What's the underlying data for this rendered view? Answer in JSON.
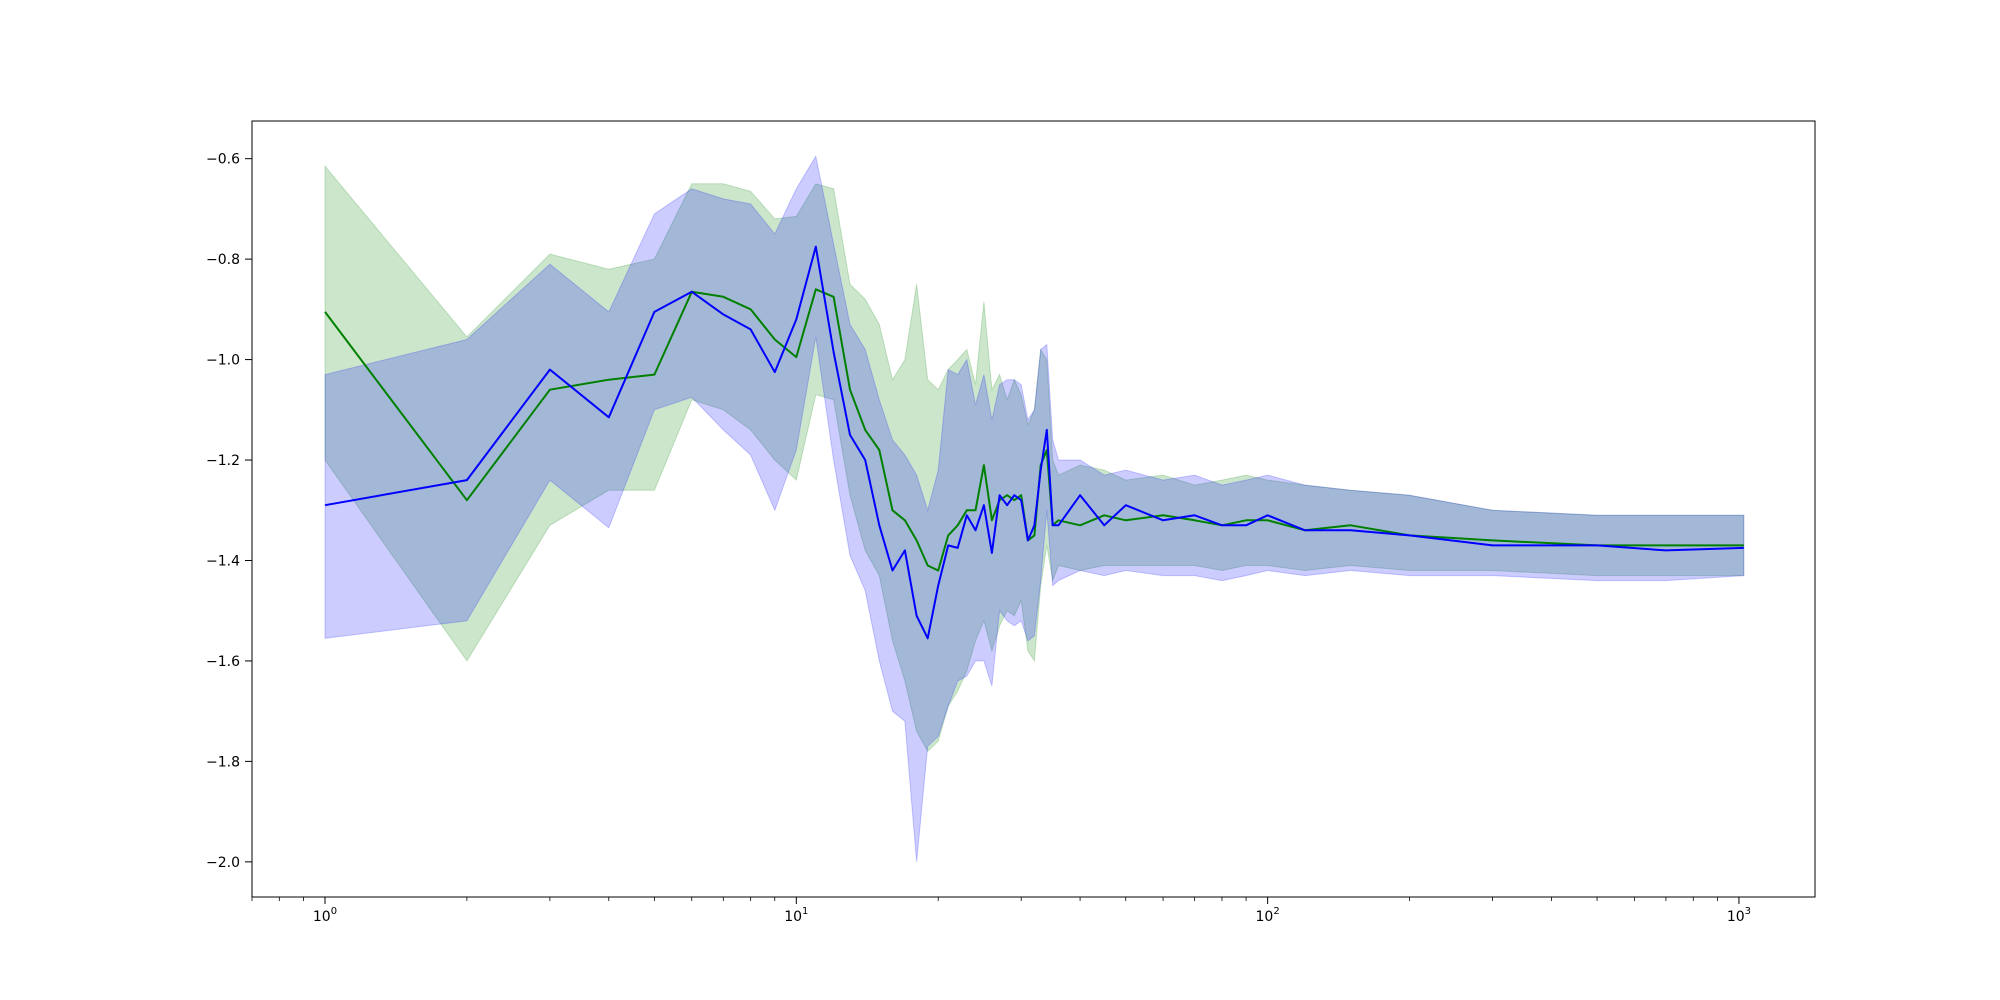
{
  "chart_data": {
    "type": "line",
    "title": "",
    "xlabel": "",
    "ylabel": "",
    "x_scale": "log",
    "xlim": [
      0.7,
      1450
    ],
    "ylim": [
      -2.07,
      -0.525
    ],
    "x_ticks": [
      {
        "value": 1,
        "base": "10",
        "exp": "0"
      },
      {
        "value": 10,
        "base": "10",
        "exp": "1"
      },
      {
        "value": 100,
        "base": "10",
        "exp": "2"
      },
      {
        "value": 1000,
        "base": "10",
        "exp": "3"
      }
    ],
    "y_ticks": [
      {
        "value": -0.6,
        "label": "−0.6"
      },
      {
        "value": -0.8,
        "label": "−0.8"
      },
      {
        "value": -1.0,
        "label": "−1.0"
      },
      {
        "value": -1.2,
        "label": "−1.2"
      },
      {
        "value": -1.4,
        "label": "−1.4"
      },
      {
        "value": -1.6,
        "label": "−1.6"
      },
      {
        "value": -1.8,
        "label": "−1.8"
      },
      {
        "value": -2.0,
        "label": "−2.0"
      }
    ],
    "grid": false,
    "legend": "none",
    "series": [
      {
        "color": "#008000",
        "band_color": "#008000",
        "band_opacity": 0.2,
        "x": [
          1,
          2,
          3,
          4,
          5,
          6,
          7,
          8,
          9,
          10,
          11,
          12,
          13,
          14,
          15,
          16,
          17,
          18,
          19,
          20,
          21,
          22,
          23,
          24,
          25,
          26,
          27,
          28,
          29,
          30,
          31,
          32,
          33,
          34,
          35,
          36,
          40,
          45,
          50,
          60,
          70,
          80,
          90,
          100,
          120,
          150,
          200,
          300,
          500,
          700,
          1024
        ],
        "y": [
          -0.905,
          -1.28,
          -1.06,
          -1.04,
          -1.03,
          -0.865,
          -0.875,
          -0.9,
          -0.96,
          -0.995,
          -0.86,
          -0.875,
          -1.06,
          -1.14,
          -1.18,
          -1.3,
          -1.32,
          -1.36,
          -1.41,
          -1.42,
          -1.35,
          -1.33,
          -1.3,
          -1.3,
          -1.21,
          -1.32,
          -1.28,
          -1.27,
          -1.28,
          -1.27,
          -1.36,
          -1.35,
          -1.21,
          -1.18,
          -1.33,
          -1.32,
          -1.33,
          -1.31,
          -1.32,
          -1.31,
          -1.32,
          -1.33,
          -1.32,
          -1.32,
          -1.34,
          -1.33,
          -1.35,
          -1.36,
          -1.37,
          -1.37,
          -1.37
        ],
        "upper": [
          -0.615,
          -0.955,
          -0.79,
          -0.82,
          -0.8,
          -0.65,
          -0.65,
          -0.665,
          -0.72,
          -0.715,
          -0.65,
          -0.66,
          -0.85,
          -0.88,
          -0.93,
          -1.04,
          -1.0,
          -0.85,
          -1.04,
          -1.06,
          -1.02,
          -1.0,
          -0.98,
          -1.05,
          -0.885,
          -1.06,
          -1.03,
          -1.08,
          -1.04,
          -1.07,
          -1.13,
          -1.1,
          -0.98,
          -1.0,
          -1.2,
          -1.23,
          -1.21,
          -1.22,
          -1.24,
          -1.23,
          -1.25,
          -1.24,
          -1.23,
          -1.24,
          -1.25,
          -1.26,
          -1.27,
          -1.3,
          -1.31,
          -1.31,
          -1.31
        ],
        "lower": [
          -1.2,
          -1.6,
          -1.33,
          -1.26,
          -1.26,
          -1.08,
          -1.1,
          -1.14,
          -1.2,
          -1.24,
          -1.07,
          -1.08,
          -1.27,
          -1.38,
          -1.43,
          -1.56,
          -1.64,
          -1.74,
          -1.78,
          -1.76,
          -1.69,
          -1.66,
          -1.62,
          -1.56,
          -1.52,
          -1.58,
          -1.53,
          -1.5,
          -1.51,
          -1.48,
          -1.58,
          -1.6,
          -1.45,
          -1.37,
          -1.44,
          -1.41,
          -1.42,
          -1.41,
          -1.41,
          -1.41,
          -1.41,
          -1.42,
          -1.41,
          -1.41,
          -1.42,
          -1.41,
          -1.42,
          -1.42,
          -1.43,
          -1.43,
          -1.43
        ]
      },
      {
        "color": "#0000ff",
        "band_color": "#0000ff",
        "band_opacity": 0.2,
        "x": [
          1,
          2,
          3,
          4,
          5,
          6,
          7,
          8,
          9,
          10,
          11,
          12,
          13,
          14,
          15,
          16,
          17,
          18,
          19,
          20,
          21,
          22,
          23,
          24,
          25,
          26,
          27,
          28,
          29,
          30,
          31,
          32,
          33,
          34,
          35,
          36,
          40,
          45,
          50,
          60,
          70,
          80,
          90,
          100,
          120,
          150,
          200,
          300,
          500,
          700,
          1024
        ],
        "y": [
          -1.29,
          -1.24,
          -1.02,
          -1.115,
          -0.905,
          -0.865,
          -0.91,
          -0.94,
          -1.025,
          -0.92,
          -0.775,
          -0.985,
          -1.15,
          -1.2,
          -1.33,
          -1.42,
          -1.38,
          -1.51,
          -1.555,
          -1.45,
          -1.37,
          -1.375,
          -1.31,
          -1.34,
          -1.29,
          -1.385,
          -1.27,
          -1.29,
          -1.27,
          -1.28,
          -1.36,
          -1.33,
          -1.22,
          -1.14,
          -1.33,
          -1.33,
          -1.27,
          -1.33,
          -1.29,
          -1.32,
          -1.31,
          -1.33,
          -1.33,
          -1.31,
          -1.34,
          -1.34,
          -1.35,
          -1.37,
          -1.37,
          -1.38,
          -1.375
        ],
        "upper": [
          -1.03,
          -0.96,
          -0.81,
          -0.905,
          -0.71,
          -0.66,
          -0.68,
          -0.69,
          -0.75,
          -0.66,
          -0.595,
          -0.77,
          -0.93,
          -0.98,
          -1.08,
          -1.16,
          -1.19,
          -1.23,
          -1.3,
          -1.22,
          -1.02,
          -1.03,
          -1.0,
          -1.09,
          -1.03,
          -1.12,
          -1.05,
          -1.04,
          -1.04,
          -1.05,
          -1.12,
          -1.1,
          -0.98,
          -0.97,
          -1.16,
          -1.2,
          -1.2,
          -1.23,
          -1.22,
          -1.24,
          -1.23,
          -1.25,
          -1.24,
          -1.23,
          -1.25,
          -1.26,
          -1.27,
          -1.3,
          -1.31,
          -1.31,
          -1.31
        ],
        "lower": [
          -1.555,
          -1.52,
          -1.24,
          -1.335,
          -1.1,
          -1.075,
          -1.14,
          -1.19,
          -1.3,
          -1.18,
          -0.955,
          -1.2,
          -1.39,
          -1.46,
          -1.6,
          -1.7,
          -1.72,
          -2.0,
          -1.77,
          -1.75,
          -1.69,
          -1.64,
          -1.63,
          -1.6,
          -1.6,
          -1.65,
          -1.5,
          -1.52,
          -1.53,
          -1.52,
          -1.56,
          -1.55,
          -1.44,
          -1.3,
          -1.45,
          -1.44,
          -1.42,
          -1.43,
          -1.42,
          -1.43,
          -1.43,
          -1.44,
          -1.43,
          -1.42,
          -1.43,
          -1.42,
          -1.43,
          -1.43,
          -1.44,
          -1.44,
          -1.43
        ]
      }
    ]
  }
}
